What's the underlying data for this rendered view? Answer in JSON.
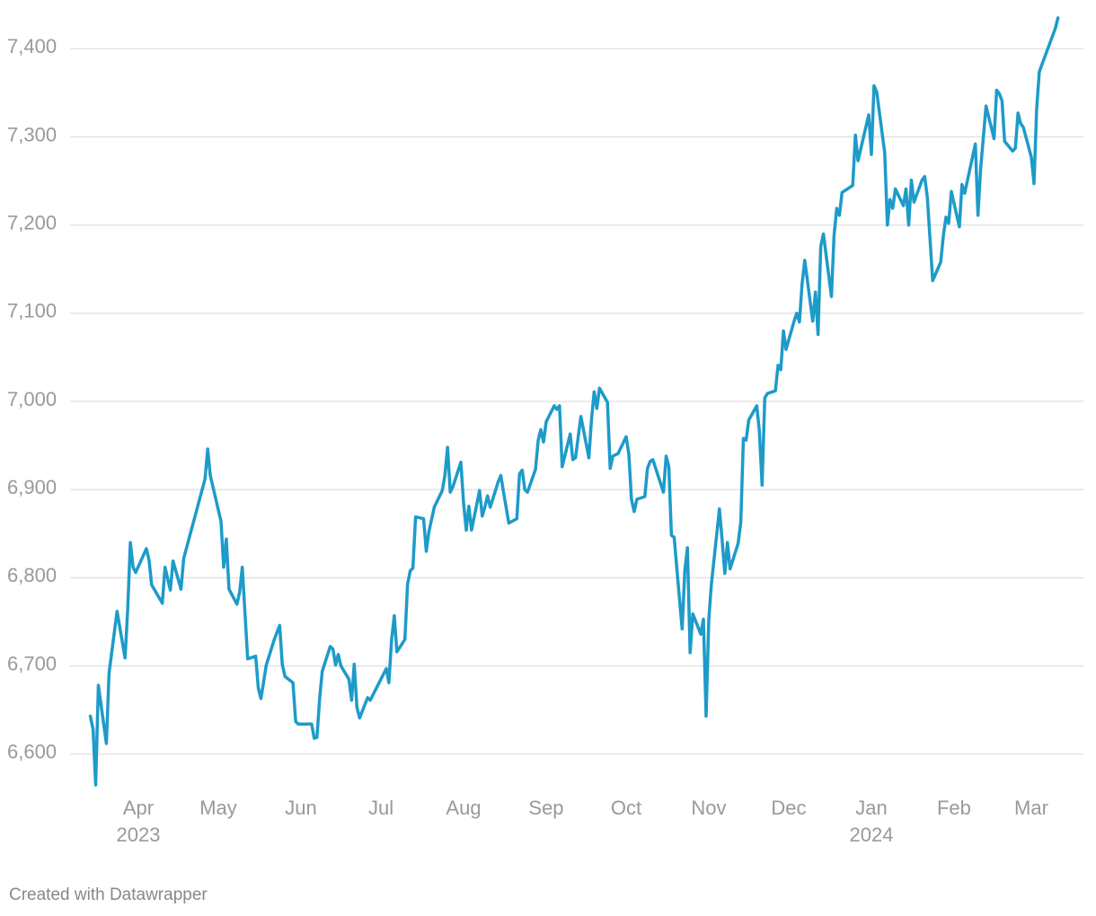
{
  "chart_data": {
    "type": "line",
    "color": "#1d9bc9",
    "grid": true,
    "x": [
      13,
      14,
      15,
      16,
      19,
      20,
      23,
      26,
      27,
      28,
      29,
      30,
      34,
      35,
      36,
      40,
      41,
      43,
      44,
      47,
      48,
      56,
      57,
      58,
      62,
      63,
      64,
      65,
      68,
      69,
      70,
      72,
      75,
      76,
      77,
      79,
      82,
      84,
      85,
      86,
      89,
      90,
      91,
      96,
      97,
      98,
      99,
      100,
      103,
      104,
      105,
      106,
      107,
      110,
      111,
      112,
      113,
      114,
      117,
      118,
      124,
      125,
      126,
      127,
      128,
      131,
      132,
      133,
      134,
      135,
      138,
      139,
      140,
      142,
      145,
      146,
      147,
      148,
      149,
      152,
      153,
      154,
      155,
      156,
      159,
      160,
      161,
      162,
      163,
      166,
      167,
      168,
      170,
      173,
      174,
      175,
      176,
      177,
      180,
      181,
      182,
      183,
      184,
      187,
      188,
      189,
      190,
      193,
      194,
      195,
      197,
      200,
      201,
      202,
      203,
      204,
      207,
      208,
      209,
      211,
      214,
      215,
      216,
      217,
      218,
      221,
      222,
      223,
      224,
      228,
      229,
      230,
      231,
      232,
      235,
      236,
      237,
      238,
      239,
      242,
      243,
      244,
      245,
      246,
      249,
      250,
      251,
      252,
      253,
      256,
      257,
      258,
      259,
      260,
      263,
      264,
      265,
      266,
      267,
      270,
      271,
      272,
      273,
      274,
      277,
      278,
      279,
      280,
      281,
      284,
      285,
      286,
      287,
      288,
      291,
      292,
      293,
      294,
      295,
      299,
      300,
      301,
      305,
      306,
      307,
      308,
      311,
      312,
      313,
      314,
      315,
      318,
      319,
      320,
      321,
      322,
      325,
      326,
      327,
      329,
      332,
      333,
      334,
      335,
      336,
      339,
      340,
      341,
      345,
      346,
      347,
      349,
      352,
      353,
      354,
      355,
      356,
      359,
      360,
      361,
      362,
      363,
      366,
      367,
      368,
      369,
      375,
      376
    ],
    "values": [
      6643,
      6628,
      6565,
      6678,
      6612,
      6692,
      6762,
      6709,
      6763,
      6840,
      6812,
      6806,
      6833,
      6820,
      6792,
      6771,
      6812,
      6786,
      6819,
      6787,
      6822,
      6912,
      6946,
      6916,
      6864,
      6812,
      6844,
      6787,
      6770,
      6784,
      6812,
      6708,
      6711,
      6675,
      6663,
      6701,
      6730,
      6746,
      6702,
      6688,
      6681,
      6637,
      6634,
      6634,
      6618,
      6619,
      6663,
      6694,
      6722,
      6719,
      6701,
      6713,
      6700,
      6685,
      6661,
      6702,
      6653,
      6641,
      6664,
      6661,
      6697,
      6681,
      6730,
      6757,
      6716,
      6730,
      6793,
      6808,
      6811,
      6869,
      6867,
      6830,
      6852,
      6880,
      6899,
      6916,
      6948,
      6897,
      6903,
      6931,
      6885,
      6854,
      6881,
      6854,
      6899,
      6870,
      6880,
      6893,
      6880,
      6909,
      6916,
      6897,
      6862,
      6867,
      6918,
      6922,
      6900,
      6897,
      6923,
      6956,
      6968,
      6954,
      6977,
      6995,
      6991,
      6995,
      6926,
      6963,
      6934,
      6936,
      6983,
      6936,
      6979,
      7011,
      6992,
      7015,
      6999,
      6924,
      6938,
      6941,
      6960,
      6940,
      6889,
      6875,
      6889,
      6892,
      6924,
      6932,
      6934,
      6897,
      6938,
      6926,
      6848,
      6846,
      6742,
      6808,
      6834,
      6715,
      6759,
      6736,
      6753,
      6643,
      6753,
      6793,
      6878,
      6843,
      6805,
      6840,
      6810,
      6839,
      6863,
      6958,
      6956,
      6979,
      6995,
      6966,
      6905,
      7004,
      7009,
      7012,
      7041,
      7036,
      7080,
      7059,
      7091,
      7100,
      7090,
      7133,
      7160,
      7091,
      7124,
      7076,
      7176,
      7190,
      7119,
      7188,
      7219,
      7211,
      7237,
      7245,
      7302,
      7273,
      7325,
      7280,
      7358,
      7351,
      7282,
      7200,
      7229,
      7219,
      7241,
      7222,
      7241,
      7200,
      7251,
      7226,
      7251,
      7255,
      7231,
      7137,
      7158,
      7188,
      7209,
      7202,
      7238,
      7198,
      7246,
      7236,
      7292,
      7211,
      7264,
      7335,
      7298,
      7353,
      7349,
      7341,
      7295,
      7284,
      7287,
      7327,
      7315,
      7311,
      7277,
      7247,
      7331,
      7374,
      7423,
      7435
    ],
    "xlim": [
      10,
      384
    ],
    "xticks": [
      {
        "value": 31,
        "label": "Apr"
      },
      {
        "value": 61,
        "label": "May"
      },
      {
        "value": 92,
        "label": "Jun"
      },
      {
        "value": 122,
        "label": "Jul"
      },
      {
        "value": 153,
        "label": "Aug"
      },
      {
        "value": 184,
        "label": "Sep"
      },
      {
        "value": 214,
        "label": "Oct"
      },
      {
        "value": 245,
        "label": "Nov"
      },
      {
        "value": 275,
        "label": "Dec"
      },
      {
        "value": 306,
        "label": "Jan"
      },
      {
        "value": 337,
        "label": "Feb"
      },
      {
        "value": 366,
        "label": "Mar"
      }
    ],
    "x_year_labels": [
      {
        "value": 31,
        "label": "2023"
      },
      {
        "value": 306,
        "label": "2024"
      }
    ],
    "ylim": [
      6560,
      7440
    ],
    "yticks": [
      {
        "value": 6600,
        "label": "6,600"
      },
      {
        "value": 6700,
        "label": "6,700"
      },
      {
        "value": 6800,
        "label": "6,800"
      },
      {
        "value": 6900,
        "label": "6,900"
      },
      {
        "value": 7000,
        "label": "7,000"
      },
      {
        "value": 7100,
        "label": "7,100"
      },
      {
        "value": 7200,
        "label": "7,200"
      },
      {
        "value": 7300,
        "label": "7,300"
      },
      {
        "value": 7400,
        "label": "7,400"
      }
    ],
    "credit": "Created with Datawrapper"
  }
}
